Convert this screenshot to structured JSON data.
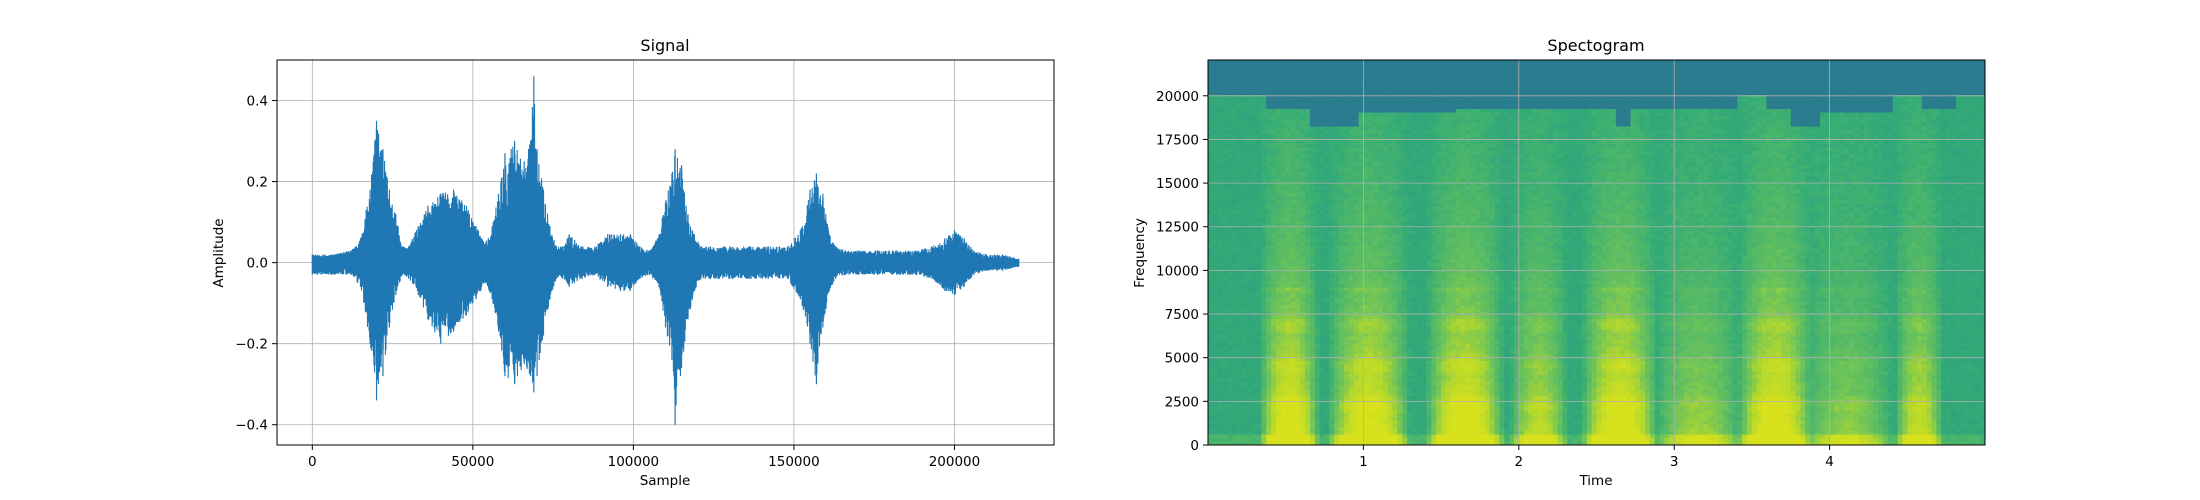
{
  "chart_data": [
    {
      "type": "line",
      "title": "Signal",
      "xlabel": "Sample",
      "ylabel": "Amplitude",
      "xlim": [
        -11000,
        231000
      ],
      "ylim": [
        -0.45,
        0.5
      ],
      "xticks": [
        0,
        50000,
        100000,
        150000,
        200000
      ],
      "xtick_labels": [
        "0",
        "50000",
        "100000",
        "150000",
        "200000"
      ],
      "yticks": [
        -0.4,
        -0.2,
        0.0,
        0.2,
        0.4
      ],
      "ytick_labels": [
        "−0.4",
        "−0.2",
        "0.0",
        "0.2",
        "0.4"
      ],
      "grid": true,
      "color": "#1f77b4",
      "series": [
        {
          "x": [
            0,
            6000,
            12000,
            15000,
            18000,
            20000,
            22000,
            24000,
            26000,
            28000,
            30000,
            33000,
            36000,
            40000,
            44000,
            48000,
            51000,
            54000,
            56000,
            58000,
            60000,
            63000,
            66000,
            68000,
            69000,
            70000,
            72000,
            74000,
            76000,
            78000,
            80000,
            84000,
            88000,
            92000,
            96000,
            99000,
            102000,
            105000,
            108000,
            110000,
            112000,
            113000,
            115000,
            117000,
            119000,
            121000,
            124000,
            130000,
            136000,
            142000,
            148000,
            152000,
            155000,
            157000,
            159000,
            161000,
            163000,
            166000,
            170000,
            176000,
            182000,
            188000,
            193000,
            197000,
            200000,
            203000,
            206000,
            210000,
            215000,
            220000
          ],
          "upper": [
            0.02,
            0.02,
            0.03,
            0.06,
            0.18,
            0.35,
            0.28,
            0.18,
            0.12,
            0.04,
            0.04,
            0.09,
            0.14,
            0.17,
            0.18,
            0.14,
            0.09,
            0.05,
            0.09,
            0.17,
            0.27,
            0.3,
            0.25,
            0.3,
            0.46,
            0.28,
            0.18,
            0.09,
            0.04,
            0.04,
            0.07,
            0.04,
            0.04,
            0.07,
            0.07,
            0.07,
            0.04,
            0.03,
            0.07,
            0.15,
            0.22,
            0.28,
            0.24,
            0.12,
            0.07,
            0.04,
            0.04,
            0.04,
            0.04,
            0.04,
            0.04,
            0.08,
            0.18,
            0.22,
            0.17,
            0.07,
            0.04,
            0.03,
            0.03,
            0.03,
            0.03,
            0.03,
            0.04,
            0.06,
            0.08,
            0.06,
            0.03,
            0.02,
            0.02,
            0.01
          ],
          "lower": [
            -0.03,
            -0.03,
            -0.03,
            -0.06,
            -0.2,
            -0.34,
            -0.28,
            -0.16,
            -0.08,
            -0.03,
            -0.04,
            -0.08,
            -0.14,
            -0.2,
            -0.17,
            -0.13,
            -0.09,
            -0.05,
            -0.09,
            -0.17,
            -0.28,
            -0.3,
            -0.25,
            -0.28,
            -0.32,
            -0.28,
            -0.18,
            -0.09,
            -0.04,
            -0.04,
            -0.06,
            -0.04,
            -0.03,
            -0.06,
            -0.07,
            -0.07,
            -0.04,
            -0.03,
            -0.06,
            -0.16,
            -0.24,
            -0.4,
            -0.26,
            -0.14,
            -0.07,
            -0.04,
            -0.04,
            -0.04,
            -0.04,
            -0.04,
            -0.04,
            -0.09,
            -0.2,
            -0.3,
            -0.16,
            -0.07,
            -0.04,
            -0.03,
            -0.03,
            -0.03,
            -0.03,
            -0.03,
            -0.04,
            -0.07,
            -0.08,
            -0.06,
            -0.03,
            -0.02,
            -0.02,
            -0.01
          ]
        }
      ]
    },
    {
      "type": "heatmap",
      "title": "Spectogram",
      "xlabel": "Time",
      "ylabel": "Frequency",
      "xlim": [
        0,
        5.0
      ],
      "ylim": [
        0,
        22050
      ],
      "xticks": [
        1,
        2,
        3,
        4
      ],
      "xtick_labels": [
        "1",
        "2",
        "3",
        "4"
      ],
      "yticks": [
        0,
        2500,
        5000,
        7500,
        10000,
        12500,
        15000,
        17500,
        20000
      ],
      "ytick_labels": [
        "0",
        "2500",
        "5000",
        "7500",
        "10000",
        "12500",
        "15000",
        "17500",
        "20000"
      ],
      "grid": true,
      "colormap": "viridis",
      "colors": {
        "low": "#2a7b8e",
        "mid": "#3fb07a",
        "high": "#cfe11f"
      },
      "energy_bursts": [
        {
          "t_start": 0.37,
          "t_end": 0.68,
          "intensity": 1.0
        },
        {
          "t_start": 0.82,
          "t_end": 1.25,
          "intensity": 0.95
        },
        {
          "t_start": 1.45,
          "t_end": 1.86,
          "intensity": 1.0
        },
        {
          "t_start": 1.98,
          "t_end": 2.28,
          "intensity": 0.7
        },
        {
          "t_start": 2.45,
          "t_end": 2.85,
          "intensity": 1.0
        },
        {
          "t_start": 2.93,
          "t_end": 3.38,
          "intensity": 0.55
        },
        {
          "t_start": 3.45,
          "t_end": 3.85,
          "intensity": 1.0
        },
        {
          "t_start": 3.88,
          "t_end": 4.35,
          "intensity": 0.5
        },
        {
          "t_start": 4.45,
          "t_end": 4.7,
          "intensity": 0.75
        }
      ],
      "cutoff_segments": [
        {
          "t_start": 0.0,
          "t_end": 0.38,
          "freq": 20000
        },
        {
          "t_start": 0.38,
          "t_end": 0.65,
          "freq": 19200
        },
        {
          "t_start": 0.65,
          "t_end": 0.97,
          "freq": 18200
        },
        {
          "t_start": 0.97,
          "t_end": 1.6,
          "freq": 19000
        },
        {
          "t_start": 1.6,
          "t_end": 2.62,
          "freq": 19200
        },
        {
          "t_start": 2.62,
          "t_end": 2.72,
          "freq": 18200
        },
        {
          "t_start": 2.72,
          "t_end": 3.4,
          "freq": 19200
        },
        {
          "t_start": 3.4,
          "t_end": 3.58,
          "freq": 20000
        },
        {
          "t_start": 3.58,
          "t_end": 3.75,
          "freq": 19200
        },
        {
          "t_start": 3.75,
          "t_end": 3.95,
          "freq": 18200
        },
        {
          "t_start": 3.95,
          "t_end": 4.42,
          "freq": 19000
        },
        {
          "t_start": 4.42,
          "t_end": 4.58,
          "freq": 20000
        },
        {
          "t_start": 4.58,
          "t_end": 4.68,
          "freq": 19200
        },
        {
          "t_start": 4.68,
          "t_end": 4.82,
          "freq": 19200
        },
        {
          "t_start": 4.82,
          "t_end": 5.0,
          "freq": 20000
        }
      ]
    }
  ]
}
